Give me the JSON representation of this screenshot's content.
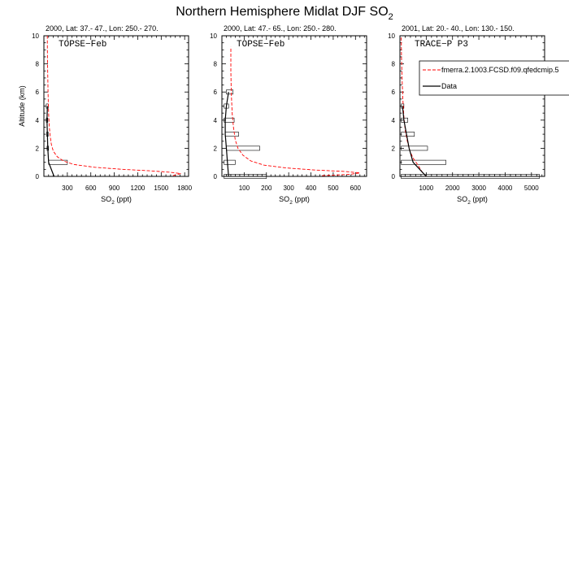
{
  "figure": {
    "title": "Northern Hemisphere Midlat DJF SO",
    "title_subscript": "2"
  },
  "legend": {
    "entries": [
      {
        "label": "fmerra.2.1003.FCSD.f09.qfedcmip.5",
        "style": "dashed",
        "color": "#ff0000"
      },
      {
        "label": "Data",
        "style": "solid",
        "color": "#000000"
      }
    ]
  },
  "chart_data": [
    {
      "type": "line",
      "subtitle": "2000, Lat: 37.- 47., Lon: 250.- 270.",
      "campaign": "TOPSE−Feb",
      "xlabel": "SO",
      "xlabel_sub": "2",
      "xlabel_unit": " (ppt)",
      "ylabel": "Altitude (km)",
      "xlim": [
        0,
        1850
      ],
      "ylim": [
        0,
        10
      ],
      "xticks": [
        300,
        600,
        900,
        1200,
        1500,
        1800
      ],
      "yticks": [
        0,
        2,
        4,
        6,
        8,
        10
      ],
      "model": {
        "name": "fmerra.2.1003.FCSD.f09.qfedcmip.5",
        "color": "#ff0000",
        "x": [
          1650,
          1750,
          1600,
          1350,
          1000,
          650,
          380,
          250,
          170,
          120,
          95,
          80,
          70,
          62,
          57,
          53,
          50,
          47,
          45,
          44
        ],
        "y": [
          0.05,
          0.2,
          0.3,
          0.4,
          0.5,
          0.65,
          0.85,
          1.1,
          1.4,
          1.8,
          2.3,
          2.9,
          3.5,
          4.2,
          5.0,
          6.0,
          7.0,
          8.0,
          9.0,
          10.0
        ]
      },
      "data": {
        "name": "Data",
        "color": "#000000",
        "x": [
          130,
          60,
          50,
          45,
          40,
          45
        ],
        "y": [
          0,
          1,
          2,
          3,
          4,
          5
        ]
      },
      "bars": [
        {
          "y": 1,
          "x0": 60,
          "x1": 300
        },
        {
          "y": 2,
          "x0": 40,
          "x1": 60
        },
        {
          "y": 3,
          "x0": 35,
          "x1": 55
        },
        {
          "y": 4,
          "x0": 30,
          "x1": 50
        },
        {
          "y": 5,
          "x0": 30,
          "x1": 55
        }
      ]
    },
    {
      "type": "line",
      "subtitle": "2000, Lat: 47.- 65., Lon: 250.- 280.",
      "campaign": "TOPSE−Feb",
      "xlabel": "SO",
      "xlabel_sub": "2",
      "xlabel_unit": " (ppt)",
      "ylabel": "",
      "xlim": [
        0,
        650
      ],
      "ylim": [
        0,
        10
      ],
      "xticks": [
        100,
        200,
        300,
        400,
        500,
        600
      ],
      "yticks": [
        0,
        2,
        4,
        6,
        8,
        10
      ],
      "model": {
        "name": "fmerra.2.1003.FCSD.f09.qfedcmip.5",
        "color": "#ff0000",
        "x": [
          450,
          580,
          620,
          550,
          420,
          290,
          190,
          130,
          95,
          72,
          60,
          52,
          46,
          42,
          40,
          40
        ],
        "y": [
          0.05,
          0.15,
          0.25,
          0.35,
          0.45,
          0.6,
          0.8,
          1.1,
          1.5,
          2.0,
          2.6,
          3.5,
          4.5,
          6.0,
          7.5,
          9.2
        ]
      },
      "data": {
        "name": "Data",
        "color": "#000000",
        "x": [
          30,
          25,
          20,
          15,
          15,
          20,
          30
        ],
        "y": [
          0,
          1,
          2,
          3,
          4,
          5,
          6
        ]
      },
      "bars": [
        {
          "y": 0,
          "x0": 10,
          "x1": 200
        },
        {
          "y": 1,
          "x0": 10,
          "x1": 60
        },
        {
          "y": 2,
          "x0": 20,
          "x1": 170
        },
        {
          "y": 3,
          "x0": 15,
          "x1": 75
        },
        {
          "y": 4,
          "x0": 10,
          "x1": 55
        },
        {
          "y": 5,
          "x0": 10,
          "x1": 30
        },
        {
          "y": 6,
          "x0": 20,
          "x1": 50
        }
      ]
    },
    {
      "type": "line",
      "subtitle": "2001, Lat: 20.- 40., Lon: 130.- 150.",
      "campaign": "TRACE−P P3",
      "xlabel": "SO",
      "xlabel_sub": "2",
      "xlabel_unit": " (ppt)",
      "ylabel": "",
      "xlim": [
        0,
        5500
      ],
      "ylim": [
        0,
        10
      ],
      "xticks": [
        1000,
        2000,
        3000,
        4000,
        5000
      ],
      "yticks": [
        0,
        2,
        4,
        6,
        8,
        10
      ],
      "model": {
        "name": "fmerra.2.1003.FCSD.f09.qfedcmip.5",
        "color": "#ff0000",
        "x": [
          1000,
          850,
          750,
          650,
          500,
          380,
          280,
          200,
          150,
          110,
          80,
          60,
          50
        ],
        "y": [
          0.0,
          0.3,
          0.6,
          0.9,
          1.3,
          1.8,
          2.5,
          3.3,
          4.2,
          5.5,
          7.0,
          8.5,
          10.0
        ]
      },
      "data": {
        "name": "Data",
        "color": "#000000",
        "x": [
          1000,
          500,
          350,
          250,
          150,
          100
        ],
        "y": [
          0,
          1,
          2,
          3,
          4,
          5
        ]
      },
      "bars": [
        {
          "y": 0,
          "x0": 50,
          "x1": 5300
        },
        {
          "y": 1,
          "x0": 50,
          "x1": 1750
        },
        {
          "y": 2,
          "x0": 50,
          "x1": 1050
        },
        {
          "y": 3,
          "x0": 50,
          "x1": 550
        },
        {
          "y": 4,
          "x0": 50,
          "x1": 300
        },
        {
          "y": 5,
          "x0": 50,
          "x1": 150
        }
      ]
    }
  ]
}
